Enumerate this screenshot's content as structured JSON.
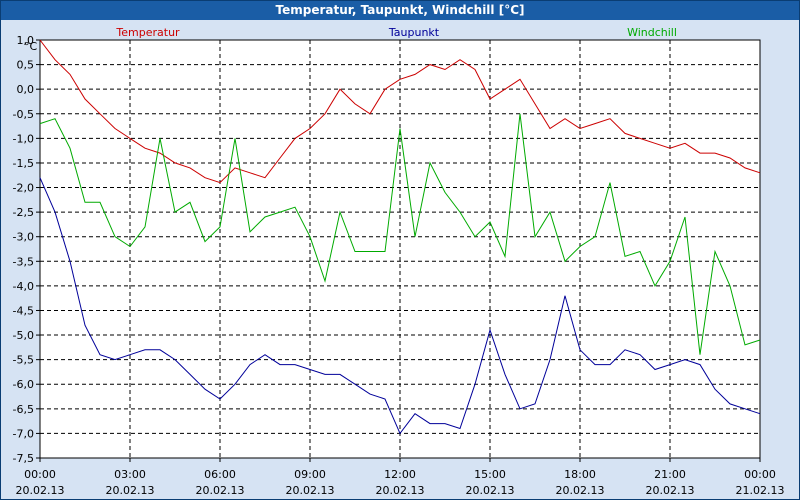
{
  "window": {
    "title": "Temperatur, Taupunkt, Windchill [°C]"
  },
  "chart_data": {
    "type": "line",
    "title": "Temperatur, Taupunkt, Windchill [°C]",
    "ylabel": "°C",
    "ylim": [
      -7.5,
      1.0
    ],
    "grid": true,
    "yticks": [
      1.0,
      0.5,
      0.0,
      -0.5,
      -1.0,
      -1.5,
      -2.0,
      -2.5,
      -3.0,
      -3.5,
      -4.0,
      -4.5,
      -5.0,
      -5.5,
      -6.0,
      -6.5,
      -7.0,
      -7.5
    ],
    "ytick_labels": [
      "1,0",
      "0,5",
      "0,0",
      "-0,5",
      "-1,0",
      "-1,5",
      "-2,0",
      "-2,5",
      "-3,0",
      "-3,5",
      "-4,0",
      "-4,5",
      "-5,0",
      "-5,5",
      "-6,0",
      "-6,5",
      "-7,0",
      "-7,5"
    ],
    "x_range_hours": [
      0,
      24
    ],
    "xticks": [
      {
        "hour": 0,
        "time": "00:00",
        "date": "20.02.13"
      },
      {
        "hour": 3,
        "time": "03:00",
        "date": "20.02.13"
      },
      {
        "hour": 6,
        "time": "06:00",
        "date": "20.02.13"
      },
      {
        "hour": 9,
        "time": "09:00",
        "date": "20.02.13"
      },
      {
        "hour": 12,
        "time": "12:00",
        "date": "20.02.13"
      },
      {
        "hour": 15,
        "time": "15:00",
        "date": "20.02.13"
      },
      {
        "hour": 18,
        "time": "18:00",
        "date": "20.02.13"
      },
      {
        "hour": 21,
        "time": "21:00",
        "date": "20.02.13"
      },
      {
        "hour": 24,
        "time": "00:00",
        "date": "21.02.13"
      }
    ],
    "series": [
      {
        "name": "Temperatur",
        "color": "#cc0000",
        "x": [
          0,
          0.5,
          1,
          1.5,
          2,
          2.5,
          3,
          3.5,
          4,
          4.5,
          5,
          5.5,
          6,
          6.5,
          7,
          7.5,
          8,
          8.5,
          9,
          9.5,
          10,
          10.5,
          11,
          11.5,
          12,
          12.5,
          13,
          13.5,
          14,
          14.5,
          15,
          15.5,
          16,
          16.5,
          17,
          17.5,
          18,
          18.5,
          19,
          19.5,
          20,
          20.5,
          21,
          21.5,
          22,
          22.5,
          23,
          23.5,
          24
        ],
        "values": [
          1.0,
          0.6,
          0.3,
          -0.2,
          -0.5,
          -0.8,
          -1.0,
          -1.2,
          -1.3,
          -1.5,
          -1.6,
          -1.8,
          -1.9,
          -1.6,
          -1.7,
          -1.8,
          -1.4,
          -1.0,
          -0.8,
          -0.5,
          0.0,
          -0.3,
          -0.5,
          0.0,
          0.2,
          0.3,
          0.5,
          0.4,
          0.6,
          0.4,
          -0.2,
          0.0,
          0.2,
          -0.3,
          -0.8,
          -0.6,
          -0.8,
          -0.7,
          -0.6,
          -0.9,
          -1.0,
          -1.1,
          -1.2,
          -1.1,
          -1.3,
          -1.3,
          -1.4,
          -1.6,
          -1.7
        ]
      },
      {
        "name": "Taupunkt",
        "color": "#000099",
        "x": [
          0,
          0.5,
          1,
          1.5,
          2,
          2.5,
          3,
          3.5,
          4,
          4.5,
          5,
          5.5,
          6,
          6.5,
          7,
          7.5,
          8,
          8.5,
          9,
          9.5,
          10,
          10.5,
          11,
          11.5,
          12,
          12.5,
          13,
          13.5,
          14,
          14.5,
          15,
          15.5,
          16,
          16.5,
          17,
          17.5,
          18,
          18.5,
          19,
          19.5,
          20,
          20.5,
          21,
          21.5,
          22,
          22.5,
          23,
          23.5,
          24
        ],
        "values": [
          -1.8,
          -2.5,
          -3.5,
          -4.8,
          -5.4,
          -5.5,
          -5.4,
          -5.3,
          -5.3,
          -5.5,
          -5.8,
          -6.1,
          -6.3,
          -6.0,
          -5.6,
          -5.4,
          -5.6,
          -5.6,
          -5.7,
          -5.8,
          -5.8,
          -6.0,
          -6.2,
          -6.3,
          -7.0,
          -6.6,
          -6.8,
          -6.8,
          -6.9,
          -6.0,
          -4.9,
          -5.8,
          -6.5,
          -6.4,
          -5.5,
          -4.2,
          -5.3,
          -5.6,
          -5.6,
          -5.3,
          -5.4,
          -5.7,
          -5.6,
          -5.5,
          -5.6,
          -6.1,
          -6.4,
          -6.5,
          -6.6
        ]
      },
      {
        "name": "Windchill",
        "color": "#00aa00",
        "x": [
          0,
          0.5,
          1,
          1.5,
          2,
          2.5,
          3,
          3.5,
          4,
          4.5,
          5,
          5.5,
          6,
          6.5,
          7,
          7.5,
          8,
          8.5,
          9,
          9.5,
          10,
          10.5,
          11,
          11.5,
          12,
          12.5,
          13,
          13.5,
          14,
          14.5,
          15,
          15.5,
          16,
          16.5,
          17,
          17.5,
          18,
          18.5,
          19,
          19.5,
          20,
          20.5,
          21,
          21.5,
          22,
          22.5,
          23,
          23.5,
          24
        ],
        "values": [
          -0.7,
          -0.6,
          -1.2,
          -2.3,
          -2.3,
          -3.0,
          -3.2,
          -2.8,
          -1.0,
          -2.5,
          -2.3,
          -3.1,
          -2.8,
          -1.0,
          -2.9,
          -2.6,
          -2.5,
          -2.4,
          -3.0,
          -3.9,
          -2.5,
          -3.3,
          -3.3,
          -3.3,
          -0.8,
          -3.0,
          -1.5,
          -2.1,
          -2.5,
          -3.0,
          -2.7,
          -3.4,
          -0.5,
          -3.0,
          -2.5,
          -3.5,
          -3.2,
          -3.0,
          -1.9,
          -3.4,
          -3.3,
          -4.0,
          -3.5,
          -2.6,
          -5.4,
          -3.3,
          -4.0,
          -5.2,
          -5.1
        ]
      }
    ]
  }
}
